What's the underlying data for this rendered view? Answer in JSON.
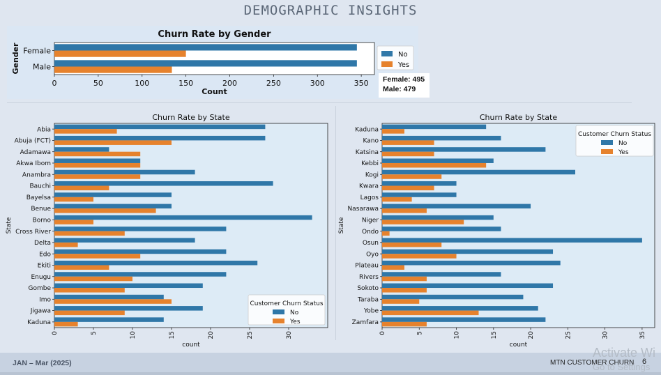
{
  "page": {
    "title": "DEMOGRAPHIC INSIGHTS",
    "gender_note_lines": [
      "Female: 495",
      "Male: 479"
    ],
    "footer_left": "JAN – Mar (2025)",
    "footer_right": "MTN CUSTOMER CHURN",
    "page_number": "6",
    "watermark_line1": "Activate Wi",
    "watermark_line2": "Go to Settings"
  },
  "colors": {
    "no": "#2f77a8",
    "yes": "#e6822d"
  },
  "chart_data": [
    {
      "id": "gender",
      "type": "bar",
      "orientation": "horizontal",
      "title": "Churn Rate by Gender",
      "xlabel": "Count",
      "ylabel": "Gender",
      "xlim": [
        0,
        365
      ],
      "xticks": [
        0,
        50,
        100,
        150,
        200,
        250,
        300,
        350
      ],
      "categories": [
        "Female",
        "Male"
      ],
      "series": [
        {
          "name": "No",
          "values": [
            345,
            345
          ]
        },
        {
          "name": "Yes",
          "values": [
            150,
            134
          ]
        }
      ],
      "legend_title": "",
      "legend_position": "outside-right",
      "grid": false
    },
    {
      "id": "state1",
      "type": "bar",
      "orientation": "horizontal",
      "title": "Churn Rate by State",
      "xlabel": "count",
      "ylabel": "State",
      "xlim": [
        0,
        35
      ],
      "xticks": [
        0,
        5,
        10,
        15,
        20,
        25,
        30
      ],
      "categories": [
        "Abia",
        "Abuja (FCT)",
        "Adamawa",
        "Akwa Ibom",
        "Anambra",
        "Bauchi",
        "Bayelsa",
        "Benue",
        "Borno",
        "Cross River",
        "Delta",
        "Edo",
        "Ekiti",
        "Enugu",
        "Gombe",
        "Imo",
        "Jigawa",
        "Kaduna"
      ],
      "series": [
        {
          "name": "No",
          "values": [
            27,
            27,
            7,
            11,
            18,
            28,
            15,
            15,
            33,
            22,
            18,
            22,
            26,
            22,
            19,
            14,
            19,
            14
          ]
        },
        {
          "name": "Yes",
          "values": [
            8,
            15,
            11,
            11,
            11,
            7,
            5,
            13,
            5,
            9,
            3,
            11,
            7,
            10,
            9,
            15,
            9,
            3
          ]
        }
      ],
      "legend_title": "Customer Churn Status",
      "legend_position": "lower-right",
      "grid": false
    },
    {
      "id": "state2",
      "type": "bar",
      "orientation": "horizontal",
      "title": "Churn Rate by State",
      "xlabel": "count",
      "ylabel": "State",
      "xlim": [
        0,
        36.7
      ],
      "xticks": [
        0,
        5,
        10,
        15,
        20,
        25,
        30,
        35
      ],
      "categories": [
        "Kaduna",
        "Kano",
        "Katsina",
        "Kebbi",
        "Kogi",
        "Kwara",
        "Lagos",
        "Nasarawa",
        "Niger",
        "Ondo",
        "Osun",
        "Oyo",
        "Plateau",
        "Rivers",
        "Sokoto",
        "Taraba",
        "Yobe",
        "Zamfara"
      ],
      "series": [
        {
          "name": "No",
          "values": [
            14,
            16,
            22,
            15,
            26,
            10,
            10,
            20,
            15,
            16,
            35,
            23,
            24,
            16,
            23,
            19,
            21,
            22
          ]
        },
        {
          "name": "Yes",
          "values": [
            3,
            7,
            7,
            14,
            8,
            7,
            4,
            6,
            11,
            1,
            8,
            10,
            3,
            6,
            6,
            5,
            13,
            6
          ]
        }
      ],
      "legend_title": "Customer Churn Status",
      "legend_position": "upper-right",
      "grid": false
    }
  ]
}
